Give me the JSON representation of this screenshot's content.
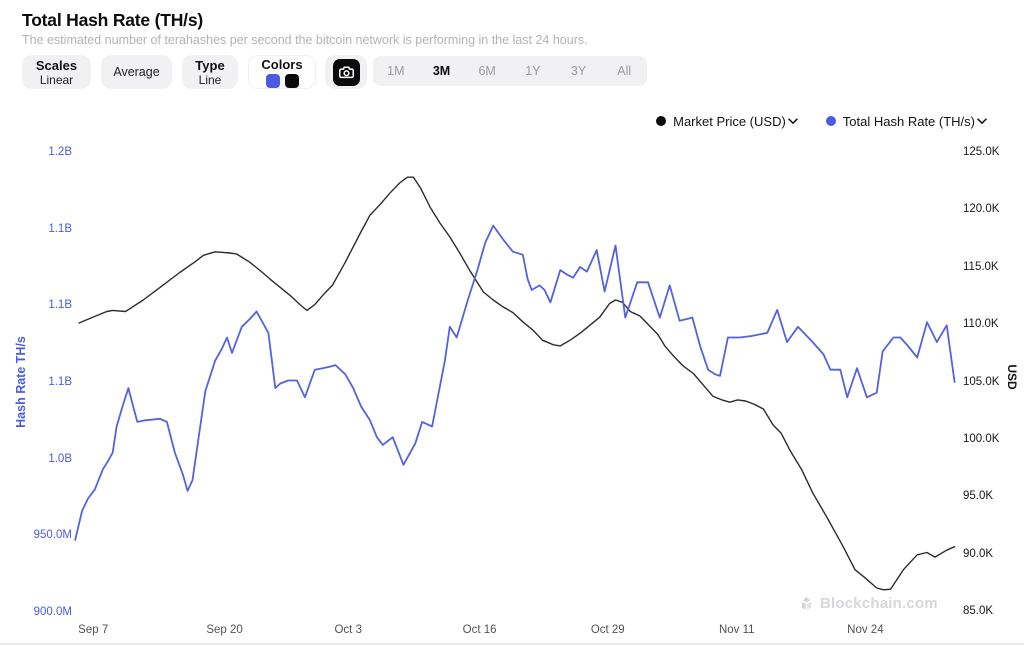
{
  "header": {
    "title": "Total Hash Rate (TH/s)",
    "subtitle": "The estimated number of terahashes per second the bitcoin network is performing in the last 24 hours."
  },
  "toolbar": {
    "scales": {
      "label": "Scales",
      "value": "Linear"
    },
    "average": {
      "label": "Average"
    },
    "type": {
      "label": "Type",
      "value": "Line"
    },
    "colors": {
      "label": "Colors",
      "swatches": [
        "#4b5ce2",
        "#0b0b0c"
      ]
    },
    "camera_icon": "camera-icon",
    "ranges": {
      "options": [
        "1M",
        "3M",
        "6M",
        "1Y",
        "3Y",
        "All"
      ],
      "selected": "3M"
    }
  },
  "legend": [
    {
      "label": "Market Price (USD)",
      "color": "#0b0b0c"
    },
    {
      "label": "Total Hash Rate (TH/s)",
      "color": "#4b5ce2"
    }
  ],
  "watermark": {
    "text": "Blockchain.com"
  },
  "chart_data": {
    "type": "line",
    "title": "Total Hash Rate (TH/s)",
    "grid": false,
    "legend_position": "top-right",
    "x_axis": {
      "unit": "date (day index, day 0 = Sep 6)",
      "domain_days": [
        0,
        91
      ],
      "ticks": [
        {
          "day": 1,
          "label": "Sep 7"
        },
        {
          "day": 14,
          "label": "Sep 20"
        },
        {
          "day": 27,
          "label": "Oct 3"
        },
        {
          "day": 40,
          "label": "Oct 16"
        },
        {
          "day": 53,
          "label": "Oct 29"
        },
        {
          "day": 66,
          "label": "Nov 11"
        },
        {
          "day": 79,
          "label": "Nov 24"
        }
      ]
    },
    "left_axis": {
      "title": "Hash Rate TH/s",
      "unit": "million TH/s",
      "min": 900,
      "max": 1200,
      "ticks": [
        {
          "value": 1200,
          "label": "1.2B"
        },
        {
          "value": 1150,
          "label": "1.1B"
        },
        {
          "value": 1100,
          "label": "1.1B"
        },
        {
          "value": 1050,
          "label": "1.1B"
        },
        {
          "value": 1000,
          "label": "1.0B"
        },
        {
          "value": 950,
          "label": "950.0M"
        },
        {
          "value": 900,
          "label": "900.0M"
        }
      ]
    },
    "right_axis": {
      "title": "USD",
      "unit": "USD",
      "min": 85000,
      "max": 125000,
      "ticks": [
        {
          "value": 125000,
          "label": "125.0K"
        },
        {
          "value": 120000,
          "label": "120.0K"
        },
        {
          "value": 115000,
          "label": "115.0K"
        },
        {
          "value": 110000,
          "label": "110.0K"
        },
        {
          "value": 105000,
          "label": "105.0K"
        },
        {
          "value": 100000,
          "label": "100.0K"
        },
        {
          "value": 95000,
          "label": "95.0K"
        },
        {
          "value": 90000,
          "label": "90.0K"
        },
        {
          "value": 85000,
          "label": "85.0K"
        }
      ]
    },
    "series": [
      {
        "name": "Market Price (USD)",
        "axis": "right",
        "color": "#2c2c2f",
        "points": [
          [
            1.1,
            110100
          ],
          [
            2.2,
            110500
          ],
          [
            3.9,
            111100
          ],
          [
            4.5,
            111200
          ],
          [
            5.8,
            111100
          ],
          [
            7.6,
            112100
          ],
          [
            9.3,
            113200
          ],
          [
            11.3,
            114500
          ],
          [
            12.8,
            115400
          ],
          [
            13.7,
            116000
          ],
          [
            14.9,
            116300
          ],
          [
            16.4,
            116200
          ],
          [
            17.1,
            116100
          ],
          [
            18.4,
            115400
          ],
          [
            19.7,
            114500
          ],
          [
            20.5,
            113900
          ],
          [
            21.5,
            113200
          ],
          [
            22.5,
            112500
          ],
          [
            23.5,
            111700
          ],
          [
            24.2,
            111200
          ],
          [
            25,
            111700
          ],
          [
            25.8,
            112500
          ],
          [
            26.8,
            113400
          ],
          [
            28.1,
            115400
          ],
          [
            29.6,
            117900
          ],
          [
            30.6,
            119500
          ],
          [
            31.6,
            120400
          ],
          [
            32.6,
            121400
          ],
          [
            33.6,
            122300
          ],
          [
            34.4,
            122800
          ],
          [
            35,
            122800
          ],
          [
            35.7,
            121900
          ],
          [
            36.7,
            120200
          ],
          [
            37.7,
            118800
          ],
          [
            38.7,
            117600
          ],
          [
            39.7,
            116200
          ],
          [
            40.7,
            114700
          ],
          [
            42.1,
            112800
          ],
          [
            43.1,
            112100
          ],
          [
            44.1,
            111500
          ],
          [
            45.1,
            111000
          ],
          [
            46.1,
            110200
          ],
          [
            47.1,
            109500
          ],
          [
            48.1,
            108600
          ],
          [
            49.2,
            108200
          ],
          [
            49.9,
            108100
          ],
          [
            50.9,
            108600
          ],
          [
            51.9,
            109200
          ],
          [
            52.9,
            109900
          ],
          [
            53.9,
            110600
          ],
          [
            54.9,
            111800
          ],
          [
            55.5,
            112100
          ],
          [
            56.2,
            111900
          ],
          [
            57,
            111100
          ],
          [
            58,
            110700
          ],
          [
            59,
            109800
          ],
          [
            59.8,
            109100
          ],
          [
            60.5,
            108100
          ],
          [
            61.3,
            107300
          ],
          [
            62.3,
            106400
          ],
          [
            63.4,
            105700
          ],
          [
            64.4,
            104700
          ],
          [
            65.4,
            103700
          ],
          [
            66.3,
            103400
          ],
          [
            67.1,
            103200
          ],
          [
            67.9,
            103400
          ],
          [
            68.7,
            103300
          ],
          [
            69.6,
            103000
          ],
          [
            70.5,
            102600
          ],
          [
            71.5,
            101200
          ],
          [
            72.3,
            100500
          ],
          [
            73.2,
            99000
          ],
          [
            74.4,
            97300
          ],
          [
            75.5,
            95300
          ],
          [
            77,
            93100
          ],
          [
            78.6,
            90600
          ],
          [
            79.8,
            88600
          ],
          [
            80.8,
            87900
          ],
          [
            82,
            87000
          ],
          [
            82.7,
            86850
          ],
          [
            83.4,
            86900
          ],
          [
            84.7,
            88600
          ],
          [
            86.1,
            89900
          ],
          [
            87.1,
            90100
          ],
          [
            87.9,
            89700
          ],
          [
            89.1,
            90300
          ],
          [
            89.9,
            90600
          ]
        ]
      },
      {
        "name": "Total Hash Rate (TH/s)",
        "axis": "left",
        "color": "#5562de",
        "points": [
          [
            0.7,
            947
          ],
          [
            1.4,
            966
          ],
          [
            2,
            974
          ],
          [
            2.7,
            980
          ],
          [
            3.5,
            993
          ],
          [
            4,
            998
          ],
          [
            4.5,
            1004
          ],
          [
            4.9,
            1021
          ],
          [
            5.5,
            1034
          ],
          [
            6.1,
            1046
          ],
          [
            6.5,
            1036
          ],
          [
            7,
            1024
          ],
          [
            7.8,
            1025
          ],
          [
            9.3,
            1026
          ],
          [
            10,
            1024
          ],
          [
            10.8,
            1004
          ],
          [
            11.6,
            990
          ],
          [
            12.1,
            979
          ],
          [
            12.6,
            986
          ],
          [
            13.9,
            1044
          ],
          [
            14.9,
            1064
          ],
          [
            15.6,
            1072
          ],
          [
            16.1,
            1079
          ],
          [
            16.6,
            1069
          ],
          [
            17.6,
            1086
          ],
          [
            18.4,
            1091
          ],
          [
            19.1,
            1096
          ],
          [
            20.3,
            1082
          ],
          [
            21,
            1046
          ],
          [
            21.5,
            1049
          ],
          [
            22.3,
            1051
          ],
          [
            23.2,
            1051
          ],
          [
            24,
            1040
          ],
          [
            25,
            1058
          ],
          [
            25.8,
            1059
          ],
          [
            26.5,
            1060
          ],
          [
            27.1,
            1061
          ],
          [
            28.1,
            1055
          ],
          [
            28.9,
            1046
          ],
          [
            29.7,
            1034
          ],
          [
            30.6,
            1025
          ],
          [
            31.3,
            1014
          ],
          [
            31.9,
            1009
          ],
          [
            32.9,
            1014
          ],
          [
            34,
            996
          ],
          [
            35.2,
            1010
          ],
          [
            35.9,
            1024
          ],
          [
            36.9,
            1021
          ],
          [
            38.2,
            1064
          ],
          [
            38.7,
            1086
          ],
          [
            39.4,
            1079
          ],
          [
            40.5,
            1103
          ],
          [
            41.5,
            1123
          ],
          [
            42.3,
            1141
          ],
          [
            43.1,
            1152
          ],
          [
            44.1,
            1143
          ],
          [
            45.1,
            1135
          ],
          [
            46.1,
            1133
          ],
          [
            46.6,
            1117
          ],
          [
            47,
            1110
          ],
          [
            47.8,
            1113
          ],
          [
            48.3,
            1110
          ],
          [
            48.9,
            1102
          ],
          [
            49.9,
            1123
          ],
          [
            50.6,
            1120
          ],
          [
            51.2,
            1118
          ],
          [
            51.9,
            1125
          ],
          [
            52.6,
            1122
          ],
          [
            53.6,
            1136
          ],
          [
            54.4,
            1109
          ],
          [
            55.5,
            1139
          ],
          [
            56.5,
            1092
          ],
          [
            57.7,
            1115
          ],
          [
            58.8,
            1115
          ],
          [
            60,
            1092
          ],
          [
            61,
            1113
          ],
          [
            62,
            1090
          ],
          [
            63.3,
            1092
          ],
          [
            64.1,
            1073
          ],
          [
            64.9,
            1058
          ],
          [
            65.6,
            1055
          ],
          [
            66.1,
            1054
          ],
          [
            66.9,
            1079
          ],
          [
            68.1,
            1079
          ],
          [
            69.3,
            1080
          ],
          [
            70.9,
            1082
          ],
          [
            71.9,
            1097
          ],
          [
            72.9,
            1076
          ],
          [
            74,
            1086
          ],
          [
            75.5,
            1076
          ],
          [
            76.6,
            1068
          ],
          [
            77.3,
            1058
          ],
          [
            78.3,
            1058
          ],
          [
            79,
            1040
          ],
          [
            80,
            1059
          ],
          [
            81,
            1040
          ],
          [
            82,
            1043
          ],
          [
            82.6,
            1070
          ],
          [
            83.7,
            1079
          ],
          [
            84.4,
            1079
          ],
          [
            85.1,
            1074
          ],
          [
            86.1,
            1066
          ],
          [
            87.1,
            1089
          ],
          [
            88.1,
            1076
          ],
          [
            89.1,
            1087
          ],
          [
            89.9,
            1050
          ]
        ]
      }
    ]
  }
}
